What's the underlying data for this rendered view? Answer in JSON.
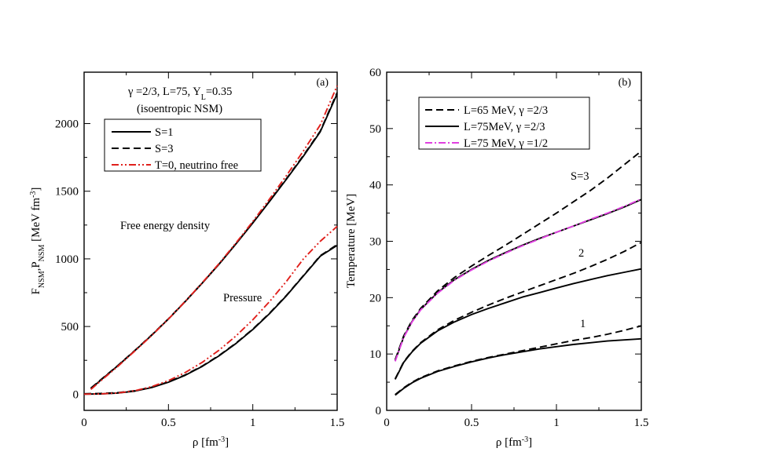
{
  "chart_data": [
    {
      "panel_label": "(a)",
      "type": "line",
      "xlabel_main": "ρ [fm",
      "xlabel_sup": "-3",
      "xlabel_end": "]",
      "ylabel": {
        "f": "F",
        "f_sub": "NSM",
        "comma": ",",
        "p": "P",
        "p_sub": "NSM",
        "unit": " [MeV fm",
        "unit_sup": "-3",
        "unit_end": "]"
      },
      "xlim": [
        0,
        1.5
      ],
      "ylim": [
        -120,
        2380
      ],
      "xticks": [
        {
          "v": 0,
          "label": "0"
        },
        {
          "v": 0.5,
          "label": "0.5"
        },
        {
          "v": 1,
          "label": "1"
        },
        {
          "v": 1.5,
          "label": "1.5"
        }
      ],
      "yticks": [
        {
          "v": 0,
          "label": "0"
        },
        {
          "v": 500,
          "label": "500"
        },
        {
          "v": 1000,
          "label": "1000"
        },
        {
          "v": 1500,
          "label": "1500"
        },
        {
          "v": 2000,
          "label": "2000"
        }
      ],
      "header": {
        "line1_gamma": "γ",
        "line1_rest": " =2/3, L=75, Y",
        "line1_sub": "L",
        "line1_end": "=0.35",
        "line2": "(isoentropic NSM)"
      },
      "legend": [
        {
          "label": "S=1",
          "style": "solid",
          "color": "#000000"
        },
        {
          "label": "S=3",
          "style": "dashed",
          "color": "#000000"
        },
        {
          "label": "T=0, neutrino free",
          "style": "dashdotdot",
          "color": "#e0201c"
        }
      ],
      "annotations": [
        {
          "text": "Free energy density",
          "x": 0.58,
          "y": 1250
        },
        {
          "text": "Pressure",
          "x": 0.88,
          "y": 700
        }
      ],
      "series": [
        {
          "name": "S=1 free energy",
          "style": "solid",
          "color": "#000000",
          "x": [
            0.04,
            0.1,
            0.2,
            0.3,
            0.4,
            0.5,
            0.6,
            0.7,
            0.8,
            0.9,
            1.0,
            1.1,
            1.2,
            1.3,
            1.4,
            1.5
          ],
          "y": [
            40,
            105,
            210,
            320,
            435,
            555,
            685,
            820,
            960,
            1110,
            1265,
            1425,
            1590,
            1760,
            1940,
            2220
          ]
        },
        {
          "name": "S=3 free energy",
          "style": "dashed",
          "color": "#000000",
          "x": [
            0.04,
            0.1,
            0.2,
            0.3,
            0.4,
            0.5,
            0.6,
            0.7,
            0.8,
            0.9,
            1.0,
            1.1,
            1.2,
            1.3,
            1.4,
            1.5
          ],
          "y": [
            45,
            108,
            212,
            322,
            437,
            557,
            687,
            822,
            962,
            1112,
            1268,
            1428,
            1594,
            1765,
            1945,
            2230
          ]
        },
        {
          "name": "T=0 free energy",
          "style": "dashdotdot",
          "color": "#e0201c",
          "x": [
            0.04,
            0.1,
            0.2,
            0.3,
            0.4,
            0.5,
            0.6,
            0.7,
            0.8,
            0.9,
            1.0,
            1.1,
            1.2,
            1.3,
            1.4,
            1.5
          ],
          "y": [
            35,
            100,
            205,
            318,
            433,
            555,
            686,
            823,
            965,
            1117,
            1277,
            1443,
            1617,
            1798,
            1990,
            2280
          ]
        },
        {
          "name": "S=1 pressure",
          "style": "solid",
          "color": "#000000",
          "x": [
            0.0,
            0.1,
            0.2,
            0.3,
            0.4,
            0.5,
            0.6,
            0.7,
            0.8,
            0.9,
            1.0,
            1.1,
            1.2,
            1.3,
            1.4,
            1.5
          ],
          "y": [
            0,
            2,
            8,
            22,
            48,
            88,
            140,
            205,
            283,
            374,
            478,
            596,
            728,
            874,
            1020,
            1100
          ]
        },
        {
          "name": "S=3 pressure",
          "style": "dashed",
          "color": "#000000",
          "x": [
            0.0,
            0.1,
            0.2,
            0.3,
            0.4,
            0.5,
            0.6,
            0.7,
            0.8,
            0.9,
            1.0,
            1.1,
            1.2,
            1.3,
            1.4,
            1.5
          ],
          "y": [
            3,
            5,
            11,
            25,
            51,
            91,
            143,
            208,
            286,
            377,
            481,
            599,
            731,
            877,
            1023,
            1105
          ]
        },
        {
          "name": "T=0 pressure",
          "style": "dashdotdot",
          "color": "#e0201c",
          "x": [
            0.0,
            0.1,
            0.2,
            0.3,
            0.4,
            0.5,
            0.6,
            0.7,
            0.8,
            0.9,
            1.0,
            1.1,
            1.2,
            1.3,
            1.4,
            1.5
          ],
          "y": [
            0,
            2,
            9,
            25,
            55,
            100,
            160,
            235,
            325,
            430,
            550,
            685,
            835,
            1000,
            1130,
            1240
          ]
        }
      ]
    },
    {
      "panel_label": "(b)",
      "type": "line",
      "xlabel_main": "ρ [fm",
      "xlabel_sup": "-3",
      "xlabel_end": "]",
      "ylabel_text": "Temperature [MeV]",
      "xlim": [
        0,
        1.5
      ],
      "ylim": [
        0,
        60
      ],
      "xticks": [
        {
          "v": 0,
          "label": "0"
        },
        {
          "v": 0.5,
          "label": "0.5"
        },
        {
          "v": 1,
          "label": "1"
        },
        {
          "v": 1.5,
          "label": "1.5"
        }
      ],
      "yticks": [
        {
          "v": 0,
          "label": "0"
        },
        {
          "v": 10,
          "label": "10"
        },
        {
          "v": 20,
          "label": "20"
        },
        {
          "v": 30,
          "label": "30"
        },
        {
          "v": 40,
          "label": "40"
        },
        {
          "v": 50,
          "label": "50"
        },
        {
          "v": 60,
          "label": "60"
        }
      ],
      "legend": [
        {
          "label_pre": "L=65 MeV, ",
          "gamma": "γ",
          "label_post": " =2/3",
          "style": "dashed",
          "color": "#000000"
        },
        {
          "label_pre": "L=75MeV, ",
          "gamma": "γ",
          "label_post": " =2/3",
          "style": "solid",
          "color": "#000000"
        },
        {
          "label_pre": "L=75 MeV, ",
          "gamma": "γ",
          "label_post": " =1/2",
          "style": "dashdot",
          "color": "#e040e0"
        }
      ],
      "annotations": [
        {
          "text": "S=3",
          "x": 1.15,
          "y": 41.5
        },
        {
          "text": "2",
          "x": 1.15,
          "y": 27.5
        },
        {
          "text": "1",
          "x": 1.15,
          "y": 14.5
        }
      ],
      "series": [
        {
          "name": "S=3 L=65",
          "style": "dashed",
          "color": "#000000",
          "x": [
            0.05,
            0.1,
            0.15,
            0.2,
            0.3,
            0.4,
            0.5,
            0.6,
            0.7,
            0.8,
            0.9,
            1.0,
            1.1,
            1.2,
            1.3,
            1.4,
            1.5
          ],
          "y": [
            9.0,
            13.2,
            16.0,
            18.1,
            21.2,
            23.6,
            25.6,
            27.5,
            29.3,
            31.2,
            33.1,
            35.0,
            37.0,
            39.0,
            41.2,
            43.6,
            46.0
          ]
        },
        {
          "name": "S=3 L=75",
          "style": "solid",
          "color": "#000000",
          "x": [
            0.05,
            0.1,
            0.15,
            0.2,
            0.3,
            0.4,
            0.5,
            0.6,
            0.7,
            0.8,
            0.9,
            1.0,
            1.1,
            1.2,
            1.3,
            1.4,
            1.5
          ],
          "y": [
            8.8,
            13.0,
            15.8,
            17.9,
            20.9,
            23.2,
            25.0,
            26.6,
            28.0,
            29.3,
            30.5,
            31.6,
            32.7,
            33.8,
            34.9,
            36.1,
            37.4
          ]
        },
        {
          "name": "S=3 L=75 gamma 1/2",
          "style": "dashdot",
          "color": "#e040e0",
          "x": [
            0.05,
            0.1,
            0.15,
            0.2,
            0.3,
            0.4,
            0.5,
            0.6,
            0.7,
            0.8,
            0.9,
            1.0,
            1.1,
            1.2,
            1.3,
            1.4,
            1.5
          ],
          "y": [
            8.7,
            12.9,
            15.7,
            17.8,
            20.8,
            23.1,
            24.9,
            26.5,
            27.9,
            29.2,
            30.4,
            31.6,
            32.7,
            33.9,
            35.0,
            36.2,
            37.5
          ]
        },
        {
          "name": "S=2 L=65",
          "style": "dashed",
          "color": "#000000",
          "x": [
            0.05,
            0.1,
            0.15,
            0.2,
            0.3,
            0.4,
            0.5,
            0.6,
            0.7,
            0.8,
            0.9,
            1.0,
            1.1,
            1.2,
            1.3,
            1.4,
            1.5
          ],
          "y": [
            5.6,
            8.6,
            10.5,
            12.0,
            14.3,
            16.0,
            17.4,
            18.7,
            19.9,
            21.0,
            22.1,
            23.2,
            24.3,
            25.5,
            26.8,
            28.2,
            29.8
          ]
        },
        {
          "name": "S=2 L=75",
          "style": "solid",
          "color": "#000000",
          "x": [
            0.05,
            0.1,
            0.15,
            0.2,
            0.3,
            0.4,
            0.5,
            0.6,
            0.7,
            0.8,
            0.9,
            1.0,
            1.1,
            1.2,
            1.3,
            1.4,
            1.5
          ],
          "y": [
            5.5,
            8.5,
            10.4,
            11.9,
            14.1,
            15.7,
            17.0,
            18.1,
            19.1,
            20.1,
            20.9,
            21.7,
            22.5,
            23.2,
            23.9,
            24.5,
            25.1
          ]
        },
        {
          "name": "S=1 L=65",
          "style": "dashed",
          "color": "#000000",
          "x": [
            0.05,
            0.1,
            0.15,
            0.2,
            0.3,
            0.4,
            0.5,
            0.6,
            0.7,
            0.8,
            0.9,
            1.0,
            1.1,
            1.2,
            1.3,
            1.4,
            1.5
          ],
          "y": [
            2.8,
            4.0,
            5.0,
            5.8,
            7.0,
            7.9,
            8.7,
            9.4,
            10.0,
            10.6,
            11.2,
            11.8,
            12.4,
            12.9,
            13.5,
            14.2,
            15.0
          ]
        },
        {
          "name": "S=1 L=75",
          "style": "solid",
          "color": "#000000",
          "x": [
            0.05,
            0.1,
            0.15,
            0.2,
            0.3,
            0.4,
            0.5,
            0.6,
            0.7,
            0.8,
            0.9,
            1.0,
            1.1,
            1.2,
            1.3,
            1.4,
            1.5
          ],
          "y": [
            2.7,
            3.9,
            4.9,
            5.7,
            6.9,
            7.8,
            8.6,
            9.3,
            9.9,
            10.4,
            10.9,
            11.3,
            11.7,
            12.0,
            12.3,
            12.5,
            12.7
          ]
        }
      ]
    }
  ]
}
